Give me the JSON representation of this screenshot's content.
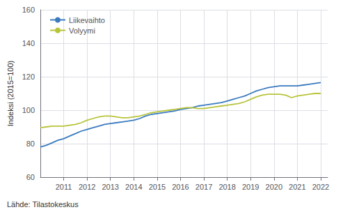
{
  "chart_data": {
    "type": "line",
    "ylabel": "Indeksi (2015=100)",
    "annotation": "Lähde: Tilastokeskus",
    "x": [
      2010.0,
      2010.25,
      2010.5,
      2010.75,
      2011.0,
      2011.25,
      2011.5,
      2011.75,
      2012.0,
      2012.25,
      2012.5,
      2012.75,
      2013.0,
      2013.25,
      2013.5,
      2013.75,
      2014.0,
      2014.25,
      2014.5,
      2014.75,
      2015.0,
      2015.25,
      2015.5,
      2015.75,
      2016.0,
      2016.25,
      2016.5,
      2016.75,
      2017.0,
      2017.25,
      2017.5,
      2017.75,
      2018.0,
      2018.25,
      2018.5,
      2018.75,
      2019.0,
      2019.25,
      2019.5,
      2019.75,
      2020.0,
      2020.25,
      2020.5,
      2020.75,
      2021.0,
      2021.25,
      2021.5,
      2021.75,
      2022.0
    ],
    "series": [
      {
        "name": "Liikevaihto",
        "color": "#3a7abf",
        "values": [
          78.0,
          79.0,
          80.5,
          82.0,
          83.0,
          84.5,
          86.0,
          87.5,
          88.5,
          89.5,
          90.5,
          91.5,
          92.0,
          92.5,
          93.0,
          93.5,
          94.0,
          95.0,
          96.5,
          97.5,
          98.0,
          98.5,
          99.0,
          99.5,
          100.5,
          101.0,
          101.5,
          102.5,
          103.0,
          103.5,
          104.0,
          104.5,
          105.5,
          106.5,
          107.5,
          108.5,
          110.0,
          111.5,
          112.5,
          113.5,
          114.0,
          114.5,
          114.5,
          114.5,
          114.5,
          115.0,
          115.5,
          116.0,
          116.5
        ]
      },
      {
        "name": "Volyymi",
        "color": "#b8c43a",
        "values": [
          89.5,
          90.0,
          90.5,
          90.5,
          90.5,
          91.0,
          91.5,
          92.5,
          94.0,
          95.0,
          96.0,
          96.5,
          96.5,
          96.0,
          95.5,
          95.5,
          96.0,
          96.5,
          97.5,
          98.5,
          99.0,
          99.5,
          100.0,
          100.5,
          101.0,
          101.5,
          101.5,
          101.0,
          101.0,
          101.5,
          102.0,
          102.5,
          103.0,
          103.5,
          104.0,
          105.0,
          106.5,
          108.0,
          109.0,
          109.5,
          109.5,
          109.5,
          109.0,
          107.5,
          108.5,
          109.0,
          109.5,
          110.0,
          110.0
        ]
      }
    ],
    "xlim": [
      2010.0,
      2022.3
    ],
    "xticks": [
      2011,
      2012,
      2013,
      2014,
      2015,
      2016,
      2017,
      2018,
      2019,
      2020,
      2021,
      2022
    ],
    "ylim": [
      60,
      160
    ],
    "yticks": [
      60,
      80,
      100,
      120,
      140,
      160
    ],
    "grid": true,
    "legend": "upper left"
  }
}
